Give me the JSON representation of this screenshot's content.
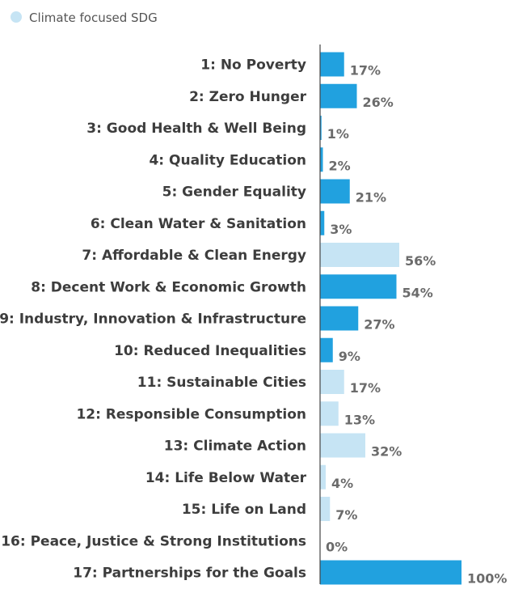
{
  "legend": {
    "label": "Climate focused SDG",
    "color": "#c6e4f4"
  },
  "colors": {
    "default": "#21a1df",
    "climate": "#c6e4f4"
  },
  "chart_data": {
    "type": "bar",
    "orientation": "horizontal",
    "categories": [
      "1: No Poverty",
      "2: Zero Hunger",
      "3: Good Health & Well Being",
      "4: Quality Education",
      "5: Gender Equality",
      "6: Clean Water & Sanitation",
      "7: Affordable & Clean Energy",
      "8: Decent Work & Economic Growth",
      "9: Industry, Innovation & Infrastructure",
      "10: Reduced Inequalities",
      "11: Sustainable Cities",
      "12: Responsible Consumption",
      "13: Climate Action",
      "14: Life Below Water",
      "15: Life on Land",
      "16: Peace, Justice & Strong Institutions",
      "17: Partnerships for the Goals"
    ],
    "values": [
      17,
      26,
      1,
      2,
      21,
      3,
      56,
      54,
      27,
      9,
      17,
      13,
      32,
      4,
      7,
      0,
      100
    ],
    "value_labels": [
      "17%",
      "26%",
      "1%",
      "2%",
      "21%",
      "3%",
      "56%",
      "54%",
      "27%",
      "9%",
      "17%",
      "13%",
      "32%",
      "4%",
      "7%",
      "0%",
      "100%"
    ],
    "climate_focused": [
      false,
      false,
      false,
      false,
      false,
      false,
      true,
      false,
      false,
      false,
      true,
      true,
      true,
      true,
      true,
      false,
      false
    ],
    "xlim": [
      0,
      100
    ],
    "grid": false,
    "legend_position": "top-left"
  }
}
